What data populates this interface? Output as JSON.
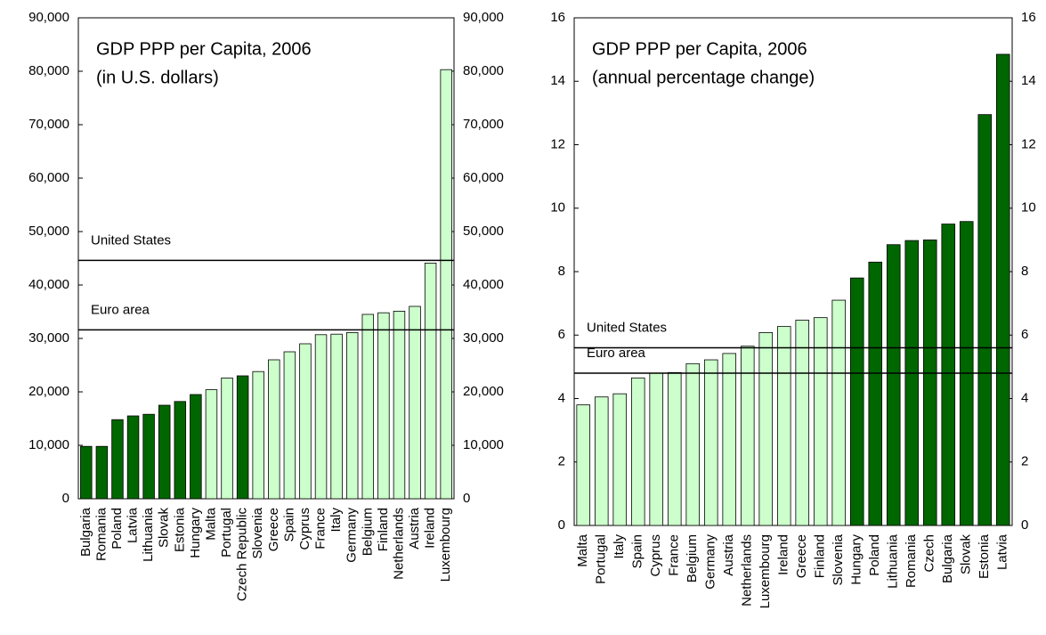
{
  "chart_data": [
    {
      "type": "bar",
      "title": "GDP PPP per Capita, 2006",
      "subtitle": "(in U.S. dollars)",
      "categories": [
        "Bulgaria",
        "Romania",
        "Poland",
        "Latvia",
        "Lithuania",
        "Slovak",
        "Estonia",
        "Hungary",
        "Malta",
        "Portugal",
        "Czech Republic",
        "Slovenia",
        "Greece",
        "Spain",
        "Cyprus",
        "France",
        "Italy",
        "Germany",
        "Belgium",
        "Finland",
        "Netherlands",
        "Austria",
        "Ireland",
        "Luxembourg"
      ],
      "values": [
        9800,
        9800,
        14800,
        15500,
        15800,
        17500,
        18200,
        19500,
        20400,
        22600,
        23000,
        23800,
        26000,
        27500,
        29000,
        30700,
        30800,
        31100,
        34500,
        34800,
        35100,
        36000,
        44100,
        80300
      ],
      "colors": [
        "#006600",
        "#006600",
        "#006600",
        "#006600",
        "#006600",
        "#006600",
        "#006600",
        "#006600",
        "#ccffcc",
        "#ccffcc",
        "#006600",
        "#ccffcc",
        "#ccffcc",
        "#ccffcc",
        "#ccffcc",
        "#ccffcc",
        "#ccffcc",
        "#ccffcc",
        "#ccffcc",
        "#ccffcc",
        "#ccffcc",
        "#ccffcc",
        "#ccffcc",
        "#ccffcc"
      ],
      "reference_lines": [
        {
          "label": "United States",
          "value": 44600
        },
        {
          "label": "Euro area",
          "value": 31600
        }
      ],
      "ylim": [
        0,
        90000
      ],
      "yticks": [
        0,
        {
          "value": 10000,
          "label": "10,000"
        },
        {
          "value": 20000,
          "label": "20,000"
        },
        {
          "value": 30000,
          "label": "30,000"
        },
        {
          "value": 40000,
          "label": "40,000"
        },
        {
          "value": 50000,
          "label": "50,000"
        },
        {
          "value": 60000,
          "label": "60,000"
        },
        {
          "value": 70000,
          "label": "70,000"
        },
        {
          "value": 80000,
          "label": "80,000"
        },
        {
          "value": 90000,
          "label": "90,000"
        }
      ],
      "y2lim": [
        0,
        90000
      ],
      "y2ticks": [
        0,
        {
          "value": 10000,
          "label": "10,000"
        },
        {
          "value": 20000,
          "label": "20,000"
        },
        {
          "value": 30000,
          "label": "30,000"
        },
        {
          "value": 40000,
          "label": "40,000"
        },
        {
          "value": 50000,
          "label": "50,000"
        },
        {
          "value": 60000,
          "label": "60,000"
        },
        {
          "value": 70000,
          "label": "70,000"
        },
        {
          "value": 80000,
          "label": "80,000"
        },
        {
          "value": 90000,
          "label": "90,000"
        }
      ]
    },
    {
      "type": "bar",
      "title": "GDP PPP per Capita, 2006",
      "subtitle": "(annual percentage change)",
      "categories": [
        "Malta",
        "Portugal",
        "Italy",
        "Spain",
        "Cyprus",
        "France",
        "Belgium",
        "Germany",
        "Austria",
        "Netherlands",
        "Luxembourg",
        "Ireland",
        "Greece",
        "Finland",
        "Slovenia",
        "Hungary",
        "Poland",
        "Lithuania",
        "Romania",
        "Czech",
        "Bulgaria",
        "Slovak",
        "Estonia",
        "Latvia"
      ],
      "values": [
        3.8,
        4.05,
        4.15,
        4.65,
        4.8,
        4.82,
        5.1,
        5.22,
        5.42,
        5.65,
        6.08,
        6.27,
        6.47,
        6.55,
        7.1,
        7.8,
        8.3,
        8.85,
        8.98,
        9.0,
        9.5,
        9.58,
        12.95,
        14.85
      ],
      "colors": [
        "#ccffcc",
        "#ccffcc",
        "#ccffcc",
        "#ccffcc",
        "#ccffcc",
        "#ccffcc",
        "#ccffcc",
        "#ccffcc",
        "#ccffcc",
        "#ccffcc",
        "#ccffcc",
        "#ccffcc",
        "#ccffcc",
        "#ccffcc",
        "#ccffcc",
        "#006600",
        "#006600",
        "#006600",
        "#006600",
        "#006600",
        "#006600",
        "#006600",
        "#006600",
        "#006600"
      ],
      "reference_lines": [
        {
          "label": "United States",
          "value": 5.6
        },
        {
          "label": "Euro area",
          "value": 4.8
        }
      ],
      "ylim": [
        0,
        16
      ],
      "yticks": [
        0,
        2,
        4,
        6,
        8,
        10,
        12,
        14,
        16
      ],
      "y2lim": [
        0,
        16
      ],
      "y2ticks": [
        0,
        2,
        4,
        6,
        8,
        10,
        12,
        14,
        16
      ]
    }
  ]
}
